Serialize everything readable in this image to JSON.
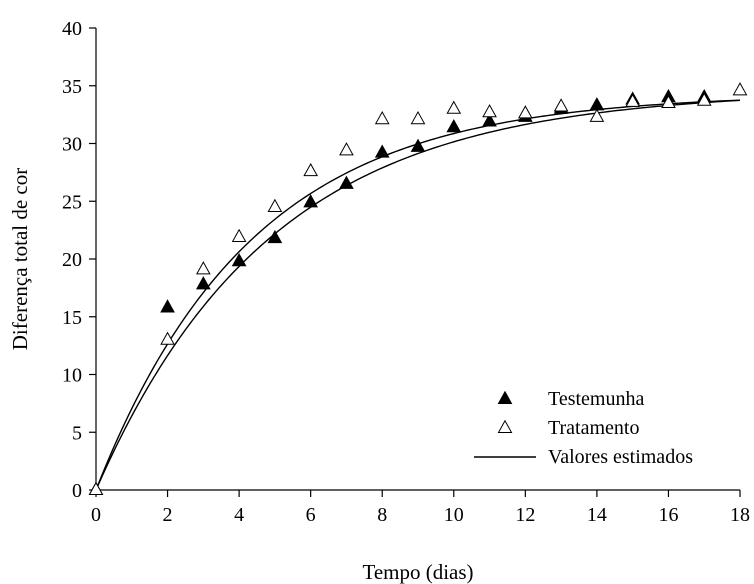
{
  "chart_data": {
    "type": "scatter",
    "title": "",
    "xlabel": "Tempo (dias)",
    "ylabel": "Diferença total de cor",
    "xlim": [
      0,
      18
    ],
    "ylim": [
      0,
      40
    ],
    "xticks": [
      0,
      2,
      4,
      6,
      8,
      10,
      12,
      14,
      16,
      18
    ],
    "yticks": [
      0,
      5,
      10,
      15,
      20,
      25,
      30,
      35,
      40
    ],
    "grid": false,
    "legend_position": "bottom-right",
    "series": [
      {
        "name": "Testemunha",
        "marker": "filled-triangle",
        "x": [
          0,
          2,
          3,
          4,
          5,
          6,
          7,
          8,
          9,
          10,
          11,
          12,
          13,
          14,
          15,
          16,
          17
        ],
        "y": [
          0,
          15.8,
          17.8,
          19.8,
          21.8,
          24.9,
          26.5,
          29.2,
          29.7,
          31.4,
          31.9,
          32.3,
          33.0,
          33.3,
          33.8,
          34.0,
          34.0
        ]
      },
      {
        "name": "Tratamento",
        "marker": "open-triangle",
        "x": [
          0,
          2,
          3,
          4,
          5,
          6,
          7,
          8,
          9,
          10,
          11,
          12,
          13,
          14,
          15,
          16,
          17,
          18
        ],
        "y": [
          0,
          13.0,
          19.1,
          21.9,
          24.5,
          27.6,
          29.4,
          32.1,
          32.1,
          33.0,
          32.7,
          32.6,
          33.2,
          32.3,
          33.6,
          33.5,
          33.7,
          34.6
        ]
      },
      {
        "name": "Valores estimados",
        "type": "line",
        "curves": [
          {
            "a": 34.6,
            "k": 0.205
          },
          {
            "a": 34.3,
            "k": 0.23
          }
        ]
      }
    ]
  }
}
